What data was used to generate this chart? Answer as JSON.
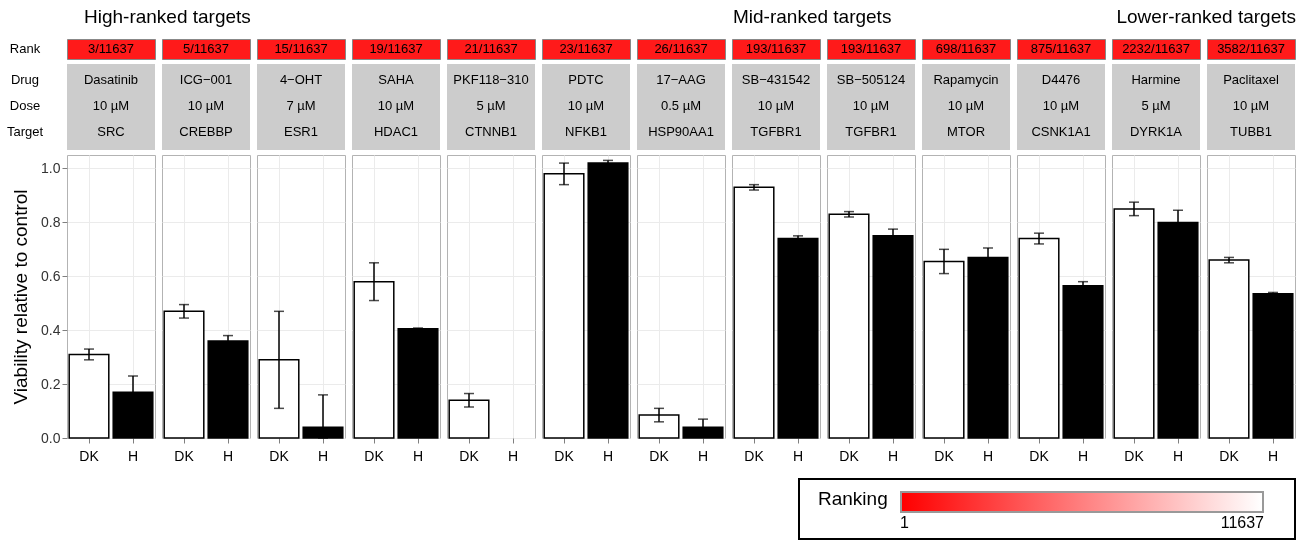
{
  "chart_data": [
    {
      "type": "bar",
      "title": "Dasatinib",
      "subtitle": "10 µM",
      "annotations": [
        "3/11637",
        "SRC",
        "High-ranked targets",
        "Rank",
        "Drug",
        "Dose",
        "Target"
      ],
      "ylabel": "Viability relative to control",
      "categories": [
        "DK",
        "H"
      ],
      "values": [
        0.31,
        0.17
      ],
      "errors": [
        0.02,
        0.06
      ],
      "colors": [
        "#ffffff",
        "#000000"
      ],
      "ylim": [
        0,
        1.05
      ],
      "yticks": [
        {
          "value": 0,
          "label": "0.0"
        },
        {
          "value": 0.2,
          "label": "0.2"
        },
        {
          "value": 0.4,
          "label": "0.4"
        },
        {
          "value": 0.6,
          "label": "0.6"
        },
        {
          "value": 0.8,
          "label": "0.8"
        },
        {
          "value": 1,
          "label": "1.0"
        }
      ],
      "grid": true
    },
    {
      "type": "bar",
      "title": "ICG−001",
      "subtitle": "10 µM",
      "annotations": [
        "5/11637",
        "CREBBP"
      ],
      "categories": [
        "DK",
        "H"
      ],
      "values": [
        0.47,
        0.36
      ],
      "errors": [
        0.025,
        0.02
      ],
      "colors": [
        "#ffffff",
        "#000000"
      ],
      "ylim": [
        0,
        1.05
      ],
      "yticks": [
        0,
        0.2,
        0.4,
        0.6,
        0.8,
        1
      ],
      "tick_labels": "x",
      "grid": true
    },
    {
      "type": "bar",
      "title": "4−OHT",
      "subtitle": "7 µM",
      "annotations": [
        "15/11637",
        "ESR1"
      ],
      "categories": [
        "DK",
        "H"
      ],
      "values": [
        0.29,
        0.04
      ],
      "errors": [
        0.18,
        [
          0,
          0.16
        ]
      ],
      "colors": [
        "#ffffff",
        "#000000"
      ],
      "ylim": [
        0,
        1.05
      ],
      "yticks": [
        0,
        0.2,
        0.4,
        0.6,
        0.8,
        1
      ],
      "tick_labels": "x",
      "grid": true
    },
    {
      "type": "bar",
      "title": "SAHA",
      "subtitle": "10 µM",
      "annotations": [
        "19/11637",
        "HDAC1"
      ],
      "categories": [
        "DK",
        "H"
      ],
      "values": [
        0.58,
        0.405
      ],
      "errors": [
        0.07,
        0.003
      ],
      "colors": [
        "#ffffff",
        "#000000"
      ],
      "ylim": [
        0,
        1.05
      ],
      "yticks": [
        0,
        0.2,
        0.4,
        0.6,
        0.8,
        1
      ],
      "tick_labels": "x",
      "grid": true
    },
    {
      "type": "bar",
      "title": "PKF118−310",
      "subtitle": "5 µM",
      "annotations": [
        "21/11637",
        "CTNNB1"
      ],
      "categories": [
        "DK",
        "H"
      ],
      "values": [
        0.14,
        null
      ],
      "errors": [
        0.025,
        null
      ],
      "colors": [
        "#ffffff",
        "#000000"
      ],
      "ylim": [
        0,
        1.05
      ],
      "yticks": [
        0,
        0.2,
        0.4,
        0.6,
        0.8,
        1
      ],
      "tick_labels": "x",
      "grid": true
    },
    {
      "type": "bar",
      "title": "PDTC",
      "subtitle": "10 µM",
      "annotations": [
        "23/11637",
        "NFKB1"
      ],
      "categories": [
        "DK",
        "H"
      ],
      "values": [
        0.98,
        1.02
      ],
      "errors": [
        0.04,
        0.01
      ],
      "colors": [
        "#ffffff",
        "#000000"
      ],
      "ylim": [
        0,
        1.05
      ],
      "yticks": [
        0,
        0.2,
        0.4,
        0.6,
        0.8,
        1
      ],
      "tick_labels": "x",
      "grid": true
    },
    {
      "type": "bar",
      "title": "17−AAG",
      "subtitle": "0.5 µM",
      "annotations": [
        "26/11637",
        "HSP90AA1"
      ],
      "categories": [
        "DK",
        "H"
      ],
      "values": [
        0.085,
        0.04
      ],
      "errors": [
        0.025,
        0.03
      ],
      "colors": [
        "#ffffff",
        "#000000"
      ],
      "ylim": [
        0,
        1.05
      ],
      "yticks": [
        0,
        0.2,
        0.4,
        0.6,
        0.8,
        1
      ],
      "tick_labels": "x",
      "grid": true
    },
    {
      "type": "bar",
      "title": "SB−431542",
      "subtitle": "10 µM",
      "annotations": [
        "193/11637",
        "TGFBR1",
        "Mid-ranked targets"
      ],
      "categories": [
        "DK",
        "H"
      ],
      "values": [
        0.93,
        0.74
      ],
      "errors": [
        0.01,
        0.01
      ],
      "colors": [
        "#ffffff",
        "#000000"
      ],
      "ylim": [
        0,
        1.05
      ],
      "yticks": [
        0,
        0.2,
        0.4,
        0.6,
        0.8,
        1
      ],
      "tick_labels": "x",
      "grid": true
    },
    {
      "type": "bar",
      "title": "SB−505124",
      "subtitle": "10 µM",
      "annotations": [
        "193/11637",
        "TGFBR1"
      ],
      "categories": [
        "DK",
        "H"
      ],
      "values": [
        0.83,
        0.75
      ],
      "errors": [
        0.01,
        0.025
      ],
      "colors": [
        "#ffffff",
        "#000000"
      ],
      "ylim": [
        0,
        1.05
      ],
      "yticks": [
        0,
        0.2,
        0.4,
        0.6,
        0.8,
        1
      ],
      "tick_labels": "x",
      "grid": true
    },
    {
      "type": "bar",
      "title": "Rapamycin",
      "subtitle": "10 µM",
      "annotations": [
        "698/11637",
        "MTOR"
      ],
      "categories": [
        "DK",
        "H"
      ],
      "values": [
        0.655,
        0.67
      ],
      "errors": [
        0.045,
        0.035
      ],
      "colors": [
        "#ffffff",
        "#000000"
      ],
      "ylim": [
        0,
        1.05
      ],
      "yticks": [
        0,
        0.2,
        0.4,
        0.6,
        0.8,
        1
      ],
      "tick_labels": "x",
      "grid": true
    },
    {
      "type": "bar",
      "title": "D4476",
      "subtitle": "10 µM",
      "annotations": [
        "875/11637",
        "CSNK1A1"
      ],
      "categories": [
        "DK",
        "H"
      ],
      "values": [
        0.74,
        0.565
      ],
      "errors": [
        0.02,
        0.015
      ],
      "colors": [
        "#ffffff",
        "#000000"
      ],
      "ylim": [
        0,
        1.05
      ],
      "yticks": [
        0,
        0.2,
        0.4,
        0.6,
        0.8,
        1
      ],
      "tick_labels": "x",
      "grid": true
    },
    {
      "type": "bar",
      "title": "Harmine",
      "subtitle": "5 µM",
      "annotations": [
        "2232/11637",
        "DYRK1A"
      ],
      "categories": [
        "DK",
        "H"
      ],
      "values": [
        0.85,
        0.8
      ],
      "errors": [
        0.025,
        0.045
      ],
      "colors": [
        "#ffffff",
        "#000000"
      ],
      "ylim": [
        0,
        1.05
      ],
      "yticks": [
        0,
        0.2,
        0.4,
        0.6,
        0.8,
        1
      ],
      "tick_labels": "x",
      "grid": true
    },
    {
      "type": "bar",
      "title": "Paclitaxel",
      "subtitle": "10 µM",
      "annotations": [
        "3582/11637",
        "TUBB1",
        "Lower-ranked targets"
      ],
      "categories": [
        "DK",
        "H"
      ],
      "values": [
        0.66,
        0.535
      ],
      "errors": [
        0.01,
        0.005
      ],
      "colors": [
        "#ffffff",
        "#000000"
      ],
      "ylim": [
        0,
        1.05
      ],
      "yticks": [
        0,
        0.2,
        0.4,
        0.6,
        0.8,
        1
      ],
      "tick_labels": "x",
      "grid": true
    },
    {
      "type": "other",
      "title": "Ranking",
      "annotations": [
        "1",
        "11637"
      ]
    }
  ]
}
